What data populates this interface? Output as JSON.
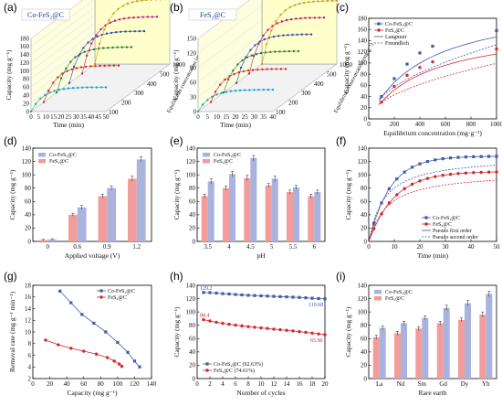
{
  "colors": {
    "blue": "#3f5ba9",
    "red": "#d6262b",
    "blue_bar": "#a9b3dd",
    "red_bar": "#f29c9c",
    "gold": "#c9a227"
  },
  "chart_data": [
    {
      "id": "a",
      "panel_label": "(a)",
      "type": "line3d",
      "title": "Co-FeS₂@C",
      "xlabel": "Time (min)",
      "ylabel": "Capacity (mg g⁻¹)",
      "zlabel": "Equilibrium concentration (mg g⁻¹)",
      "xlim": [
        0,
        50
      ],
      "ylim": [
        0,
        180
      ],
      "xticks": [
        "0",
        "5",
        "10",
        "15",
        "20",
        "25",
        "30",
        "35",
        "40",
        "45",
        "50"
      ],
      "yticks": [
        "0",
        "20",
        "40",
        "60",
        "80",
        "100",
        "120",
        "140",
        "160",
        "180"
      ],
      "zticks": [
        "100",
        "200",
        "300",
        "400",
        "500",
        "1000"
      ],
      "series": [
        {
          "z": "100",
          "color": "#1a9fd6",
          "plateau": 60
        },
        {
          "z": "200",
          "color": "#d6262b",
          "plateau": 90
        },
        {
          "z": "300",
          "color": "#2a7a3b",
          "plateau": 112
        },
        {
          "z": "400",
          "color": "#2c4fa3",
          "plateau": 128
        },
        {
          "z": "500",
          "color": "#c2187a",
          "plateau": 140
        },
        {
          "z": "1000",
          "color": "#c9a227",
          "plateau": 160
        }
      ]
    },
    {
      "id": "b",
      "panel_label": "(b)",
      "type": "line3d",
      "title": "FeS₂@C",
      "xlabel": "Time (min)",
      "ylabel": "Capacity (mg g⁻¹)",
      "zlabel": "Equilibrium concentration (mg g⁻¹)",
      "xlim": [
        0,
        40
      ],
      "ylim": [
        0,
        150
      ],
      "xticks": [
        "0",
        "5",
        "10",
        "15",
        "20",
        "25",
        "30",
        "35",
        "40"
      ],
      "yticks": [
        "0",
        "30",
        "60",
        "90",
        "120",
        "150"
      ],
      "zticks": [
        "100",
        "200",
        "300",
        "400",
        "500",
        "1000"
      ],
      "series": [
        {
          "z": "100",
          "color": "#1a9fd6",
          "plateau": 45
        },
        {
          "z": "200",
          "color": "#d6262b",
          "plateau": 68
        },
        {
          "z": "300",
          "color": "#2a7a3b",
          "plateau": 85
        },
        {
          "z": "400",
          "color": "#2c4fa3",
          "plateau": 100
        },
        {
          "z": "500",
          "color": "#c2187a",
          "plateau": 115
        },
        {
          "z": "1000",
          "color": "#c9a227",
          "plateau": 130
        }
      ]
    },
    {
      "id": "c",
      "panel_label": "(c)",
      "type": "scatter",
      "xlabel": "Equilibrium concentration (mg·g⁻¹)",
      "ylabel": "Capacity (mg g⁻¹)",
      "xlim": [
        0,
        1000
      ],
      "ylim": [
        0,
        180
      ],
      "xticks": [
        "0",
        "200",
        "400",
        "600",
        "800",
        "1000"
      ],
      "yticks": [
        "0",
        "20",
        "40",
        "60",
        "80",
        "100",
        "120",
        "140",
        "160",
        "180"
      ],
      "legend": [
        "Co-FeS₂@C",
        "FeS₂@C",
        "Langmuir",
        "Freundlich"
      ],
      "series": [
        {
          "name": "Co-FeS₂@C",
          "color": "#3f5ba9",
          "x": [
            100,
            200,
            300,
            400,
            500,
            1000
          ],
          "y": [
            40,
            72,
            98,
            118,
            130,
            158
          ]
        },
        {
          "name": "FeS₂@C",
          "color": "#d6262b",
          "x": [
            100,
            200,
            300,
            400,
            500,
            1000
          ],
          "y": [
            30,
            58,
            78,
            92,
            102,
            125
          ]
        }
      ]
    },
    {
      "id": "d",
      "panel_label": "(d)",
      "type": "bar",
      "xlabel": "Applied voltage (V)",
      "ylabel": "Capacity (mg g⁻¹)",
      "ylim": [
        0,
        140
      ],
      "categories": [
        "0",
        "0.6",
        "0.9",
        "1.2"
      ],
      "yticks": [
        "0",
        "20",
        "40",
        "60",
        "80",
        "100",
        "120",
        "140"
      ],
      "legend": [
        "Co-FeS₂@C",
        "FeS₂@C"
      ],
      "series": [
        {
          "name": "FeS₂@C",
          "color": "#f29c9c",
          "values": [
            2,
            40,
            68,
            94
          ],
          "err": [
            1,
            2,
            3,
            4
          ]
        },
        {
          "name": "Co-FeS₂@C",
          "color": "#a9b3dd",
          "values": [
            3,
            51,
            80,
            123
          ],
          "err": [
            1,
            3,
            3,
            4
          ]
        }
      ]
    },
    {
      "id": "e",
      "panel_label": "(e)",
      "type": "bar",
      "xlabel": "pH",
      "ylabel": "Capacity (mg g⁻¹)",
      "ylim": [
        0,
        140
      ],
      "categories": [
        "3.5",
        "4",
        "4.5",
        "5",
        "5.5",
        "6"
      ],
      "yticks": [
        "0",
        "20",
        "40",
        "60",
        "80",
        "100",
        "120",
        "140"
      ],
      "legend": [
        "Co-FeS₂@C",
        "FeS₂@C"
      ],
      "series": [
        {
          "name": "FeS₂@C",
          "color": "#f29c9c",
          "values": [
            68,
            80,
            95,
            84,
            74,
            68
          ],
          "err": [
            3,
            3,
            4,
            3,
            3,
            3
          ]
        },
        {
          "name": "Co-FeS₂@C",
          "color": "#a9b3dd",
          "values": [
            90,
            101,
            125,
            94,
            81,
            74
          ],
          "err": [
            4,
            4,
            4,
            4,
            3,
            3
          ]
        }
      ]
    },
    {
      "id": "f",
      "panel_label": "(f)",
      "type": "line",
      "xlabel": "Time (min)",
      "ylabel": "Capacity (mg g⁻¹)",
      "xlim": [
        0,
        50
      ],
      "ylim": [
        0,
        140
      ],
      "xticks": [
        "0",
        "10",
        "20",
        "30",
        "40",
        "50"
      ],
      "yticks": [
        "0",
        "20",
        "40",
        "60",
        "80",
        "100",
        "120",
        "140"
      ],
      "legend": [
        "Co-FeS₂@C",
        "FeS₂@C",
        "Pseudo first order",
        "Pseudo second order"
      ],
      "series": [
        {
          "name": "Co-FeS₂@C",
          "color": "#3f5ba9",
          "qe": 128,
          "k": 0.12
        },
        {
          "name": "FeS₂@C",
          "color": "#d6262b",
          "qe": 105,
          "k": 0.1
        }
      ]
    },
    {
      "id": "g",
      "panel_label": "(g)",
      "type": "line",
      "xlabel": "Capacity (mg g⁻¹)",
      "ylabel": "Removal rate (mg g⁻¹ min⁻¹)",
      "xlim": [
        0,
        140
      ],
      "ylim": [
        2,
        18
      ],
      "xticks": [
        "0",
        "20",
        "40",
        "60",
        "80",
        "100",
        "120",
        "140"
      ],
      "yticks": [
        "2",
        "4",
        "6",
        "8",
        "10",
        "12",
        "14",
        "16",
        "18"
      ],
      "legend": [
        "Co-FeS₂@C",
        "FeS₂@C"
      ],
      "series": [
        {
          "name": "Co-FeS₂@C",
          "color": "#3f5ba9",
          "x": [
            32,
            45,
            58,
            72,
            86,
            100,
            112,
            120,
            126
          ],
          "y": [
            17,
            15,
            13,
            11.5,
            10,
            8.2,
            6.5,
            5,
            4
          ]
        },
        {
          "name": "FeS₂@C",
          "color": "#d6262b",
          "x": [
            15,
            30,
            45,
            60,
            75,
            88,
            96,
            102,
            105
          ],
          "y": [
            8.6,
            7.8,
            7.2,
            6.7,
            6.2,
            5.6,
            5,
            4.5,
            4.1
          ]
        }
      ]
    },
    {
      "id": "h",
      "panel_label": "(h)",
      "type": "line",
      "xlabel": "Number of cycles",
      "ylabel": "Capacity (mg g⁻¹)",
      "xlim": [
        0,
        20
      ],
      "ylim": [
        0,
        140
      ],
      "xticks": [
        "0",
        "2",
        "4",
        "6",
        "8",
        "10",
        "12",
        "14",
        "16",
        "18",
        "20"
      ],
      "yticks": [
        "0",
        "20",
        "40",
        "60",
        "80",
        "100",
        "120",
        "140"
      ],
      "legend": [
        "Co-FeS₂@C (92.63%)",
        "FeS₂@C (74.61%)"
      ],
      "labels": {
        "co_start": "129.2",
        "co_end": "119.68",
        "fe_start": "88.4",
        "fe_end": "65.96"
      },
      "series": [
        {
          "name": "Co-FeS₂@C (92.63%)",
          "color": "#3f5ba9",
          "x": [
            1,
            2,
            3,
            4,
            5,
            6,
            7,
            8,
            9,
            10,
            11,
            12,
            13,
            14,
            15,
            16,
            17,
            18,
            19,
            20
          ],
          "y": [
            129.2,
            129,
            128.3,
            127.5,
            127,
            126.2,
            125.6,
            125,
            124.6,
            124.2,
            123.8,
            123.4,
            123,
            122.6,
            122.2,
            121.8,
            121.2,
            120.6,
            120.1,
            119.68
          ]
        },
        {
          "name": "FeS₂@C (74.61%)",
          "color": "#d6262b",
          "x": [
            1,
            2,
            3,
            4,
            5,
            6,
            7,
            8,
            9,
            10,
            11,
            12,
            13,
            14,
            15,
            16,
            17,
            18,
            19,
            20
          ],
          "y": [
            88.4,
            86.5,
            84.5,
            83,
            81.5,
            80.2,
            79,
            78,
            77,
            76,
            75.2,
            74.2,
            73.4,
            72.4,
            71.5,
            70.4,
            69.4,
            68.2,
            67,
            65.96
          ]
        }
      ]
    },
    {
      "id": "i",
      "panel_label": "(i)",
      "type": "bar",
      "xlabel": "Rare earth",
      "ylabel": "Capacity (mg g⁻¹)",
      "ylim": [
        0,
        140
      ],
      "categories": [
        "La",
        "Nd",
        "Sm",
        "Gd",
        "Dy",
        "Yb"
      ],
      "yticks": [
        "0",
        "20",
        "40",
        "60",
        "80",
        "100",
        "120",
        "140"
      ],
      "legend": [
        "Co-FeS₂@C",
        "FeS₂@C"
      ],
      "series": [
        {
          "name": "FeS₂@C",
          "color": "#f29c9c",
          "values": [
            62,
            68,
            75,
            83,
            88,
            96
          ],
          "err": [
            3,
            3,
            3,
            3,
            3,
            4
          ]
        },
        {
          "name": "Co-FeS₂@C",
          "color": "#a9b3dd",
          "values": [
            76,
            83,
            91,
            106,
            113,
            127
          ],
          "err": [
            3,
            3,
            3,
            4,
            4,
            4
          ]
        }
      ]
    }
  ]
}
